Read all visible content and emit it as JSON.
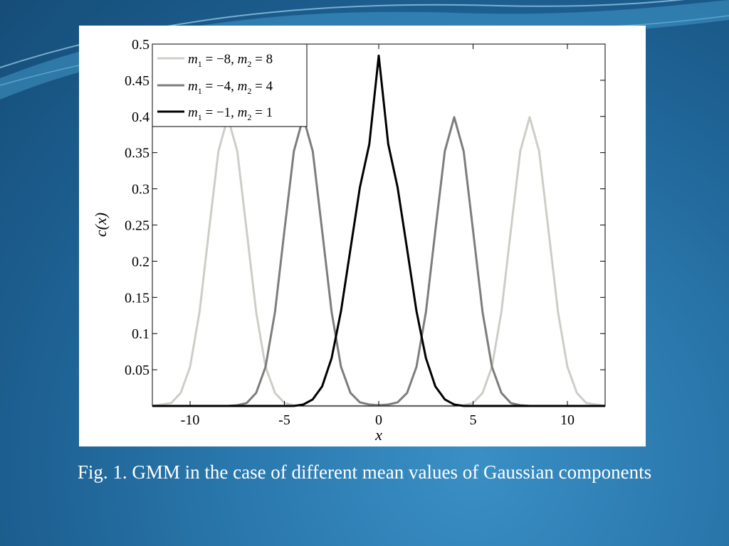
{
  "slide": {
    "caption": "Fig. 1. GMM in the case of different mean values of Gaussian components"
  },
  "chart_data": {
    "type": "line",
    "xlabel": "x",
    "ylabel": "c(x)",
    "xlim": [
      -12,
      12
    ],
    "ylim": [
      0,
      0.5
    ],
    "xticks": [
      -10,
      -5,
      0,
      5,
      10
    ],
    "yticks": [
      0.05,
      0.1,
      0.15,
      0.2,
      0.25,
      0.3,
      0.35,
      0.4,
      0.45,
      0.5
    ],
    "grid": false,
    "legend_position": "top-left",
    "series": [
      {
        "name": "m1 = −8, m2 = 8",
        "color": "#cdcdc8",
        "x": [
          -12,
          -11,
          -10.5,
          -10,
          -9.5,
          -9,
          -8.5,
          -8,
          -7.5,
          -7,
          -6.5,
          -6,
          -5.5,
          -5,
          -4.5,
          -4,
          0,
          4,
          4.5,
          5,
          5.5,
          6,
          6.5,
          7,
          7.5,
          8,
          8.5,
          9,
          9.5,
          10,
          10.5,
          11,
          12
        ],
        "y": [
          0,
          0.004,
          0.018,
          0.054,
          0.13,
          0.242,
          0.352,
          0.399,
          0.352,
          0.242,
          0.13,
          0.054,
          0.018,
          0.004,
          0.001,
          0,
          0,
          0,
          0.001,
          0.004,
          0.018,
          0.054,
          0.13,
          0.242,
          0.352,
          0.399,
          0.352,
          0.242,
          0.13,
          0.054,
          0.018,
          0.004,
          0
        ]
      },
      {
        "name": "m1 = −4, m2 = 4",
        "color": "#7d7d7d",
        "x": [
          -12,
          -8,
          -7.5,
          -7,
          -6.5,
          -6,
          -5.5,
          -5,
          -4.5,
          -4,
          -3.5,
          -3,
          -2.5,
          -2,
          -1.5,
          -1,
          -0.5,
          0,
          0.5,
          1,
          1.5,
          2,
          2.5,
          3,
          3.5,
          4,
          4.5,
          5,
          5.5,
          6,
          6.5,
          7,
          7.5,
          8,
          12
        ],
        "y": [
          0,
          0,
          0.001,
          0.004,
          0.018,
          0.054,
          0.13,
          0.242,
          0.352,
          0.399,
          0.352,
          0.242,
          0.13,
          0.054,
          0.018,
          0.005,
          0.002,
          0.001,
          0.002,
          0.005,
          0.018,
          0.054,
          0.13,
          0.242,
          0.352,
          0.399,
          0.352,
          0.242,
          0.13,
          0.054,
          0.018,
          0.004,
          0.001,
          0,
          0
        ]
      },
      {
        "name": "m1 = −1, m2 = 1",
        "color": "#000000",
        "x": [
          -12,
          -4.5,
          -4,
          -3.5,
          -3,
          -2.5,
          -2,
          -1.5,
          -1,
          -0.5,
          0,
          0.5,
          1,
          1.5,
          2,
          2.5,
          3,
          3.5,
          4,
          4.5,
          12
        ],
        "y": [
          0,
          0,
          0.002,
          0.009,
          0.027,
          0.066,
          0.131,
          0.217,
          0.302,
          0.362,
          0.484,
          0.362,
          0.302,
          0.217,
          0.131,
          0.066,
          0.027,
          0.009,
          0.002,
          0,
          0
        ]
      }
    ]
  }
}
